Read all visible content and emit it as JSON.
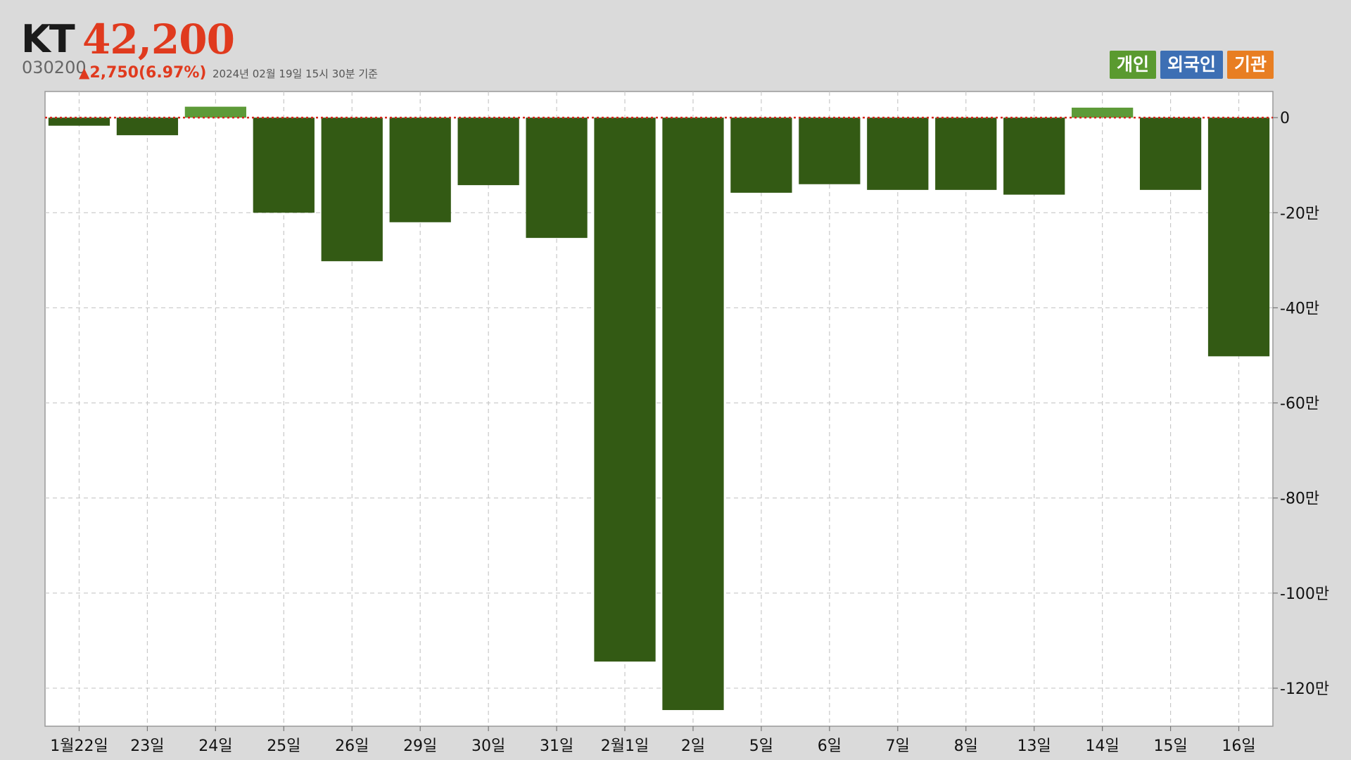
{
  "header": {
    "name": "KT",
    "price": "42,200",
    "code": "030200",
    "change_arrow": "▲",
    "change": "2,750(6.97%)",
    "as_of": "2024년 02월 19일 15시 30분 기준"
  },
  "legend": [
    {
      "label": "개인",
      "color": "#5a9a2f"
    },
    {
      "label": "외국인",
      "color": "#3d6fb4"
    },
    {
      "label": "기관",
      "color": "#e87e22"
    }
  ],
  "chart_data": {
    "type": "bar",
    "categories": [
      "1월22일",
      "23일",
      "24일",
      "25일",
      "26일",
      "29일",
      "30일",
      "31일",
      "2월1일",
      "2일",
      "5일",
      "6일",
      "7일",
      "8일",
      "13일",
      "14일",
      "15일",
      "16일"
    ],
    "series": [
      {
        "name": "개인",
        "values": [
          -17000,
          -37000,
          23000,
          -200000,
          -302000,
          -220000,
          -142000,
          -253000,
          -1144000,
          -1246000,
          -158000,
          -140000,
          -152000,
          -152000,
          -162000,
          21000,
          -152000,
          -502000
        ],
        "color_negative": "#335a14",
        "color_positive": "#5d9a38"
      }
    ],
    "yticks": [
      0,
      -200000,
      -400000,
      -600000,
      -800000,
      -1000000,
      -1200000
    ],
    "ytick_labels": [
      "0",
      "-20만",
      "-40만",
      "-60만",
      "-80만",
      "-100만",
      "-120만"
    ],
    "ylim": [
      -1280000,
      55000
    ],
    "grid": true,
    "zero_line": "dotted-red",
    "legend_position": "top-right"
  }
}
